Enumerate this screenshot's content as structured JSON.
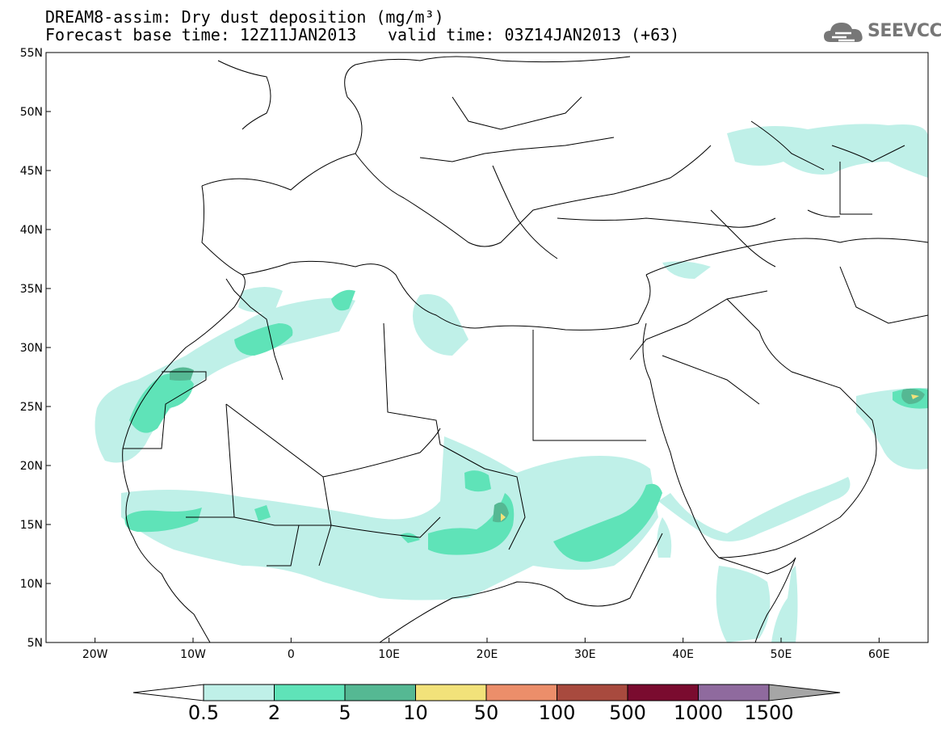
{
  "title": {
    "line1": "DREAM8-assim: Dry dust deposition (mg/m³)",
    "line2_base": "Forecast base time: 12Z11JAN2013",
    "line2_valid": "valid time: 03Z14JAN2013 (+63)"
  },
  "logo": {
    "text": "SEEVCCC",
    "icon": "cloud-icon"
  },
  "map": {
    "lon_range": [
      -25,
      65
    ],
    "lat_range": [
      5,
      55
    ],
    "lon_ticks": [
      "20W",
      "10W",
      "0",
      "10E",
      "20E",
      "30E",
      "40E",
      "50E",
      "60E"
    ],
    "lat_ticks": [
      "55N",
      "50N",
      "45N",
      "40N",
      "35N",
      "30N",
      "25N",
      "20N",
      "15N",
      "10N",
      "5N"
    ]
  },
  "colorbar": {
    "labels": [
      "0.5",
      "2",
      "5",
      "10",
      "50",
      "100",
      "500",
      "1000",
      "1500"
    ],
    "colors": [
      "#bff0e8",
      "#5fe3b8",
      "#55b893",
      "#f2e27a",
      "#ec8e6a",
      "#a84a3e",
      "#7a0b2f",
      "#8f6a9e"
    ],
    "low_arrow_color": "#ffffff",
    "high_arrow_color": "#a6a6a6"
  }
}
